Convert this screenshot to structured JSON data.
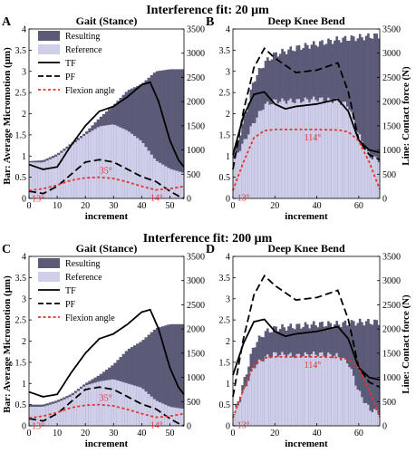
{
  "labels": {
    "section_top": "Interference fit: 20 μm",
    "section_bottom": "Interference fit: 200 μm",
    "ylabel_left": "Bar: Average Micromotion  (μm)",
    "ylabel_right": "Line: Contact force (N)",
    "xlabel": "increment"
  },
  "colors": {
    "resulting": "#5b5b78",
    "reference": "#cfcfea",
    "tf": "#000000",
    "pf": "#000000",
    "flexion": "#e8322d"
  },
  "legend": [
    {
      "key": "resulting",
      "label": "Resulting"
    },
    {
      "key": "reference",
      "label": "Reference"
    },
    {
      "key": "tf",
      "label": "TF"
    },
    {
      "key": "pf",
      "label": "PF"
    },
    {
      "key": "flexion",
      "label": "Flexion angle"
    }
  ],
  "chart_data": [
    {
      "panel": "A",
      "title": "Gait (Stance)",
      "type": "bar+line",
      "xlim": [
        0,
        55
      ],
      "xticks": [
        0,
        10,
        20,
        30,
        40,
        50
      ],
      "yticks_left": [
        0,
        0.5,
        1,
        1.5,
        2,
        2.5,
        3,
        3.5,
        4
      ],
      "yticks_right": [
        0,
        500,
        1000,
        1500,
        2000,
        2500,
        3000,
        3500
      ],
      "resulting": [
        [
          0,
          0.88
        ],
        [
          5,
          0.9
        ],
        [
          10,
          1.05
        ],
        [
          15,
          1.3
        ],
        [
          20,
          1.55
        ],
        [
          25,
          1.9
        ],
        [
          30,
          2.2
        ],
        [
          35,
          2.55
        ],
        [
          40,
          2.7
        ],
        [
          45,
          3.0
        ],
        [
          50,
          3.05
        ],
        [
          55,
          3.05
        ]
      ],
      "reference": [
        [
          0,
          0.85
        ],
        [
          5,
          0.85
        ],
        [
          10,
          1.0
        ],
        [
          15,
          1.25
        ],
        [
          20,
          1.5
        ],
        [
          25,
          1.7
        ],
        [
          30,
          1.75
        ],
        [
          35,
          1.6
        ],
        [
          40,
          1.35
        ],
        [
          45,
          0.9
        ],
        [
          50,
          0.7
        ],
        [
          55,
          0.6
        ]
      ],
      "tf": [
        [
          0,
          700
        ],
        [
          5,
          600
        ],
        [
          10,
          650
        ],
        [
          15,
          1100
        ],
        [
          20,
          1500
        ],
        [
          25,
          1800
        ],
        [
          30,
          1900
        ],
        [
          35,
          2100
        ],
        [
          40,
          2350
        ],
        [
          43,
          2400
        ],
        [
          46,
          2000
        ],
        [
          50,
          1200
        ],
        [
          53,
          800
        ],
        [
          55,
          650
        ]
      ],
      "pf": [
        [
          0,
          150
        ],
        [
          5,
          100
        ],
        [
          10,
          250
        ],
        [
          15,
          500
        ],
        [
          20,
          750
        ],
        [
          25,
          800
        ],
        [
          30,
          750
        ],
        [
          35,
          600
        ],
        [
          40,
          450
        ],
        [
          45,
          350
        ],
        [
          50,
          150
        ],
        [
          53,
          50
        ],
        [
          55,
          0
        ]
      ],
      "flexion": [
        [
          0,
          13
        ],
        [
          5,
          16
        ],
        [
          10,
          22
        ],
        [
          15,
          30
        ],
        [
          20,
          34
        ],
        [
          25,
          35
        ],
        [
          30,
          33
        ],
        [
          35,
          27
        ],
        [
          40,
          20
        ],
        [
          45,
          14
        ],
        [
          50,
          16
        ],
        [
          55,
          20
        ]
      ],
      "annotations": [
        "13°",
        "35°",
        "14°"
      ]
    },
    {
      "panel": "B",
      "title": "Deep Knee Bend",
      "type": "bar+line",
      "xlim": [
        0,
        70
      ],
      "xticks": [
        0,
        20,
        40,
        60
      ],
      "yticks_left": [
        0,
        0.5,
        1,
        1.5,
        2,
        2.5,
        3,
        3.5,
        4
      ],
      "yticks_right": [
        0,
        500,
        1000,
        1500,
        2000,
        2500,
        3000,
        3500
      ],
      "resulting": [
        [
          0,
          1.0
        ],
        [
          5,
          1.8
        ],
        [
          10,
          2.8
        ],
        [
          15,
          3.2
        ],
        [
          20,
          3.4
        ],
        [
          30,
          3.55
        ],
        [
          40,
          3.65
        ],
        [
          50,
          3.75
        ],
        [
          60,
          3.8
        ],
        [
          70,
          3.85
        ]
      ],
      "reference": [
        [
          0,
          0.9
        ],
        [
          5,
          1.3
        ],
        [
          10,
          1.8
        ],
        [
          15,
          2.2
        ],
        [
          20,
          2.3
        ],
        [
          30,
          2.3
        ],
        [
          40,
          2.35
        ],
        [
          50,
          2.3
        ],
        [
          55,
          2.2
        ],
        [
          60,
          1.5
        ],
        [
          65,
          1.0
        ],
        [
          70,
          0.9
        ]
      ],
      "tf": [
        [
          0,
          900
        ],
        [
          5,
          1700
        ],
        [
          10,
          2150
        ],
        [
          15,
          2200
        ],
        [
          20,
          1950
        ],
        [
          25,
          1850
        ],
        [
          30,
          1900
        ],
        [
          40,
          1950
        ],
        [
          50,
          2050
        ],
        [
          55,
          1800
        ],
        [
          60,
          1200
        ],
        [
          65,
          1000
        ],
        [
          70,
          950
        ]
      ],
      "pf": [
        [
          0,
          600
        ],
        [
          5,
          1800
        ],
        [
          10,
          2700
        ],
        [
          15,
          3100
        ],
        [
          20,
          2900
        ],
        [
          25,
          2750
        ],
        [
          30,
          2600
        ],
        [
          40,
          2650
        ],
        [
          50,
          2800
        ],
        [
          55,
          2200
        ],
        [
          60,
          1200
        ],
        [
          65,
          900
        ],
        [
          70,
          800
        ]
      ],
      "flexion": [
        [
          0,
          13
        ],
        [
          5,
          60
        ],
        [
          10,
          100
        ],
        [
          15,
          112
        ],
        [
          20,
          114
        ],
        [
          30,
          114
        ],
        [
          40,
          114
        ],
        [
          50,
          113
        ],
        [
          55,
          110
        ],
        [
          60,
          95
        ],
        [
          65,
          60
        ],
        [
          70,
          15
        ]
      ],
      "annotations": [
        "114°",
        "13°"
      ]
    },
    {
      "panel": "C",
      "title": "Gait (Stance)",
      "type": "bar+line",
      "xlim": [
        0,
        55
      ],
      "xticks": [
        0,
        10,
        20,
        30,
        40,
        50
      ],
      "yticks_left": [
        0,
        0.5,
        1,
        1.5,
        2,
        2.5,
        3,
        3.5,
        4
      ],
      "yticks_right": [
        0,
        500,
        1000,
        1500,
        2000,
        2500,
        3000,
        3500
      ],
      "resulting": [
        [
          0,
          0.5
        ],
        [
          5,
          0.5
        ],
        [
          10,
          0.6
        ],
        [
          15,
          0.75
        ],
        [
          20,
          1.0
        ],
        [
          25,
          1.2
        ],
        [
          30,
          1.45
        ],
        [
          35,
          1.8
        ],
        [
          40,
          2.0
        ],
        [
          45,
          2.3
        ],
        [
          50,
          2.4
        ],
        [
          55,
          2.4
        ]
      ],
      "reference": [
        [
          0,
          0.45
        ],
        [
          5,
          0.45
        ],
        [
          10,
          0.55
        ],
        [
          15,
          0.7
        ],
        [
          20,
          0.95
        ],
        [
          25,
          1.05
        ],
        [
          30,
          1.1
        ],
        [
          35,
          1.0
        ],
        [
          40,
          0.9
        ],
        [
          45,
          0.6
        ],
        [
          50,
          0.45
        ],
        [
          55,
          0.4
        ]
      ],
      "tf": [
        [
          0,
          700
        ],
        [
          5,
          600
        ],
        [
          10,
          650
        ],
        [
          15,
          1100
        ],
        [
          20,
          1500
        ],
        [
          25,
          1800
        ],
        [
          30,
          1900
        ],
        [
          35,
          2100
        ],
        [
          40,
          2350
        ],
        [
          43,
          2400
        ],
        [
          46,
          2000
        ],
        [
          50,
          1200
        ],
        [
          53,
          800
        ],
        [
          55,
          650
        ]
      ],
      "pf": [
        [
          0,
          150
        ],
        [
          5,
          100
        ],
        [
          10,
          250
        ],
        [
          15,
          500
        ],
        [
          20,
          750
        ],
        [
          25,
          800
        ],
        [
          30,
          750
        ],
        [
          35,
          600
        ],
        [
          40,
          450
        ],
        [
          45,
          350
        ],
        [
          50,
          150
        ],
        [
          53,
          50
        ],
        [
          55,
          0
        ]
      ],
      "flexion": [
        [
          0,
          13
        ],
        [
          5,
          16
        ],
        [
          10,
          22
        ],
        [
          15,
          30
        ],
        [
          20,
          34
        ],
        [
          25,
          35
        ],
        [
          30,
          33
        ],
        [
          35,
          27
        ],
        [
          40,
          20
        ],
        [
          45,
          14
        ],
        [
          50,
          16
        ],
        [
          55,
          20
        ]
      ],
      "annotations": [
        "13°",
        "35°",
        "14°"
      ]
    },
    {
      "panel": "D",
      "title": "Deep Knee Bend",
      "type": "bar+line",
      "xlim": [
        0,
        70
      ],
      "xticks": [
        0,
        20,
        40,
        60
      ],
      "yticks_left": [
        0,
        0.5,
        1,
        1.5,
        2,
        2.5,
        3,
        3.5,
        4
      ],
      "yticks_right": [
        0,
        500,
        1000,
        1500,
        2000,
        2500,
        3000,
        3500
      ],
      "resulting": [
        [
          0,
          0.2
        ],
        [
          5,
          1.0
        ],
        [
          10,
          1.9
        ],
        [
          15,
          2.2
        ],
        [
          20,
          2.3
        ],
        [
          30,
          2.35
        ],
        [
          40,
          2.4
        ],
        [
          50,
          2.4
        ],
        [
          60,
          2.45
        ],
        [
          70,
          2.45
        ]
      ],
      "reference": [
        [
          0,
          0.2
        ],
        [
          5,
          0.8
        ],
        [
          10,
          1.4
        ],
        [
          15,
          1.6
        ],
        [
          20,
          1.7
        ],
        [
          30,
          1.65
        ],
        [
          40,
          1.7
        ],
        [
          50,
          1.65
        ],
        [
          55,
          1.5
        ],
        [
          60,
          0.8
        ],
        [
          65,
          0.4
        ],
        [
          70,
          0.3
        ]
      ],
      "tf": [
        [
          0,
          1050
        ],
        [
          5,
          1700
        ],
        [
          10,
          2150
        ],
        [
          15,
          2200
        ],
        [
          20,
          1950
        ],
        [
          25,
          1850
        ],
        [
          30,
          1900
        ],
        [
          40,
          1950
        ],
        [
          50,
          2050
        ],
        [
          55,
          1800
        ],
        [
          60,
          1200
        ],
        [
          65,
          1000
        ],
        [
          70,
          950
        ]
      ],
      "pf": [
        [
          0,
          600
        ],
        [
          5,
          1800
        ],
        [
          10,
          2700
        ],
        [
          15,
          3100
        ],
        [
          20,
          2900
        ],
        [
          25,
          2750
        ],
        [
          30,
          2600
        ],
        [
          40,
          2650
        ],
        [
          50,
          2800
        ],
        [
          55,
          2200
        ],
        [
          60,
          1200
        ],
        [
          65,
          900
        ],
        [
          70,
          800
        ]
      ],
      "flexion": [
        [
          0,
          13
        ],
        [
          5,
          60
        ],
        [
          10,
          100
        ],
        [
          15,
          112
        ],
        [
          20,
          114
        ],
        [
          30,
          114
        ],
        [
          40,
          114
        ],
        [
          50,
          113
        ],
        [
          55,
          110
        ],
        [
          60,
          95
        ],
        [
          65,
          60
        ],
        [
          70,
          15
        ]
      ],
      "annotations": [
        "114°",
        "13°"
      ]
    }
  ]
}
